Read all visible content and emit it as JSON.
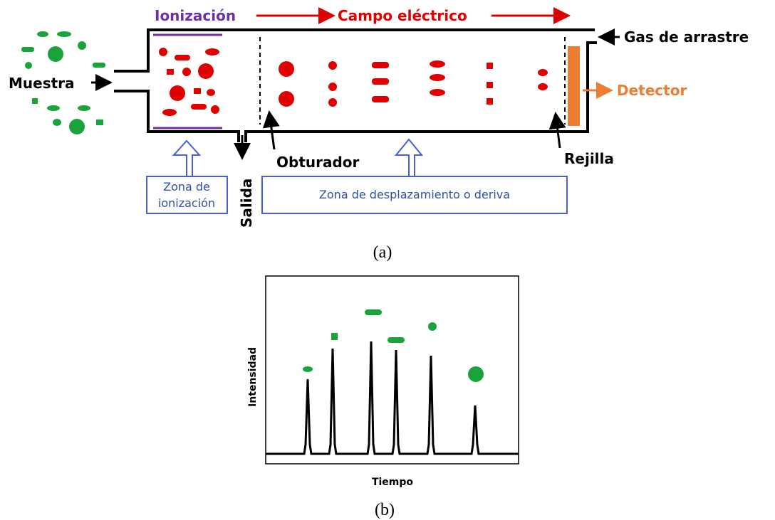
{
  "diagram_a": {
    "ionization": "Ionización",
    "electric_field": "Campo eléctrico",
    "carrier_gas": "Gas de arrastre",
    "sample": "Muestra",
    "detector": "Detector",
    "shutter": "Obturador",
    "grid": "Rejilla",
    "outlet": "Salida",
    "ionization_zone": [
      "Zona de",
      "ionización"
    ],
    "drift_zone": "Zona de desplazamiento o deriva",
    "caption": "(a)"
  },
  "diagram_b": {
    "y_label": "Intensidad",
    "x_label": "Tiempo",
    "caption": "(b)"
  }
}
